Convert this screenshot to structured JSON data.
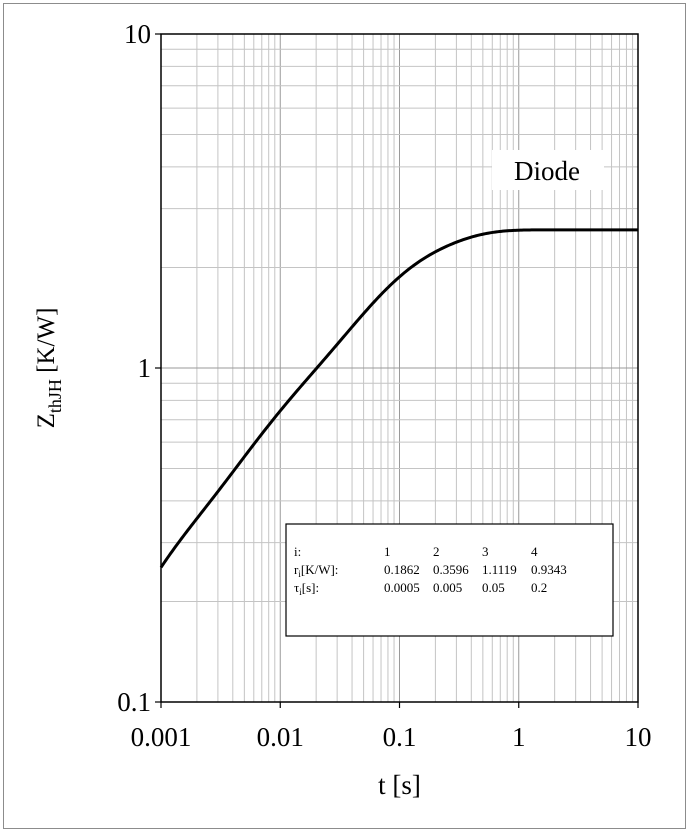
{
  "chart_data": {
    "type": "line",
    "title": "",
    "xlabel": "t [s]",
    "ylabel": {
      "main": "Z",
      "sub": "thJH",
      "unit": " [K/W]"
    },
    "xscale": "log",
    "yscale": "log",
    "xlim": [
      0.001,
      10
    ],
    "ylim": [
      0.1,
      10
    ],
    "x_ticks": [
      "0.001",
      "0.01",
      "0.1",
      "1",
      "10"
    ],
    "y_ticks": [
      "0.1",
      "1",
      "10"
    ],
    "grid": true,
    "series_label": "Diode",
    "series": [
      {
        "name": "Diode",
        "color": "#000000",
        "foster_r": [
          0.1862,
          0.3596,
          1.1119,
          0.9343
        ],
        "foster_tau": [
          0.0005,
          0.005,
          0.05,
          0.2
        ]
      }
    ],
    "params_table": {
      "rows": [
        {
          "label": "i:",
          "label_main": "",
          "label_sub": "",
          "label_rest": "",
          "values": [
            "1",
            "2",
            "3",
            "4"
          ]
        },
        {
          "label": "",
          "label_main": "r",
          "label_sub": "i",
          "label_rest": "[K/W]:",
          "values": [
            "0.1862",
            "0.3596",
            "1.1119",
            "0.9343"
          ]
        },
        {
          "label": "",
          "label_main": "τ",
          "label_sub": "i",
          "label_rest": "[s]:",
          "values": [
            "0.0005",
            "0.005",
            "0.05",
            "0.2"
          ]
        }
      ]
    }
  }
}
